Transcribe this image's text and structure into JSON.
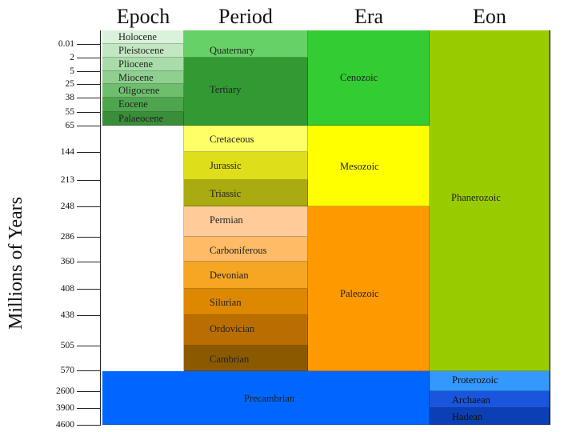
{
  "headers": {
    "epoch": "Epoch",
    "period": "Period",
    "era": "Era",
    "eon": "Eon"
  },
  "axis_label": "Millions of Years",
  "ticks": [
    "0.01",
    "2",
    "5",
    "25",
    "38",
    "55",
    "65",
    "144",
    "213",
    "248",
    "286",
    "360",
    "408",
    "438",
    "505",
    "570",
    "2600",
    "3900",
    "4600"
  ],
  "epochs": [
    {
      "name": "Holocene",
      "color": "#d9f2d9"
    },
    {
      "name": "Pleistocene",
      "color": "#c2e8c2"
    },
    {
      "name": "Pliocene",
      "color": "#a8dca8"
    },
    {
      "name": "Miocene",
      "color": "#8fcf8f"
    },
    {
      "name": "Oligocene",
      "color": "#6dbf6d"
    },
    {
      "name": "Eocene",
      "color": "#4da64d"
    },
    {
      "name": "Palaeocene",
      "color": "#3a8e3a"
    }
  ],
  "periods": [
    {
      "name": "Quaternary",
      "color": "#66d166"
    },
    {
      "name": "Tertiary",
      "color": "#339933"
    },
    {
      "name": "Cretaceous",
      "color": "#ffff66"
    },
    {
      "name": "Jurassic",
      "color": "#dede1a"
    },
    {
      "name": "Triassic",
      "color": "#aaaa11"
    },
    {
      "name": "Permian",
      "color": "#ffcc99"
    },
    {
      "name": "Carboniferous",
      "color": "#ffbb66"
    },
    {
      "name": "Devonian",
      "color": "#f5a623"
    },
    {
      "name": "Silurian",
      "color": "#dd8800"
    },
    {
      "name": "Ordovician",
      "color": "#bb6e00"
    },
    {
      "name": "Cambrian",
      "color": "#8b5a00"
    }
  ],
  "eras": [
    {
      "name": "Cenozoic",
      "color": "#33cc33"
    },
    {
      "name": "Mesozoic",
      "color": "#ffff00"
    },
    {
      "name": "Paleozoic",
      "color": "#ff9900"
    }
  ],
  "phanerozoic": {
    "name": "Phanerozoic",
    "color": "#99cc00"
  },
  "precambrian": {
    "name": "Precambrian",
    "color": "#0066ff"
  },
  "precambrian_eons": [
    {
      "name": "Proterozoic",
      "color": "#3399ff"
    },
    {
      "name": "Archaean",
      "color": "#1a55dd"
    },
    {
      "name": "Hadean",
      "color": "#0b3fb3"
    }
  ]
}
